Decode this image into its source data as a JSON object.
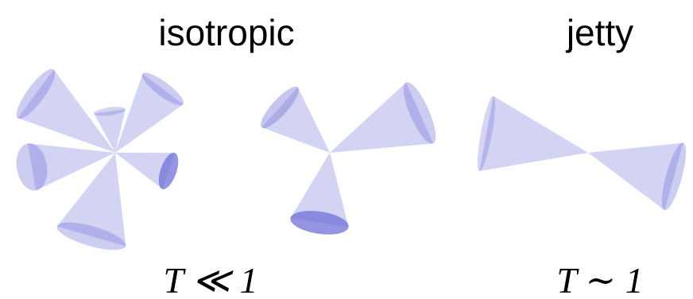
{
  "labels": {
    "left_title": "isotropic",
    "right_title": "jetty",
    "left_formula": "T ≪ 1",
    "right_formula": "T ∼ 1"
  }
}
